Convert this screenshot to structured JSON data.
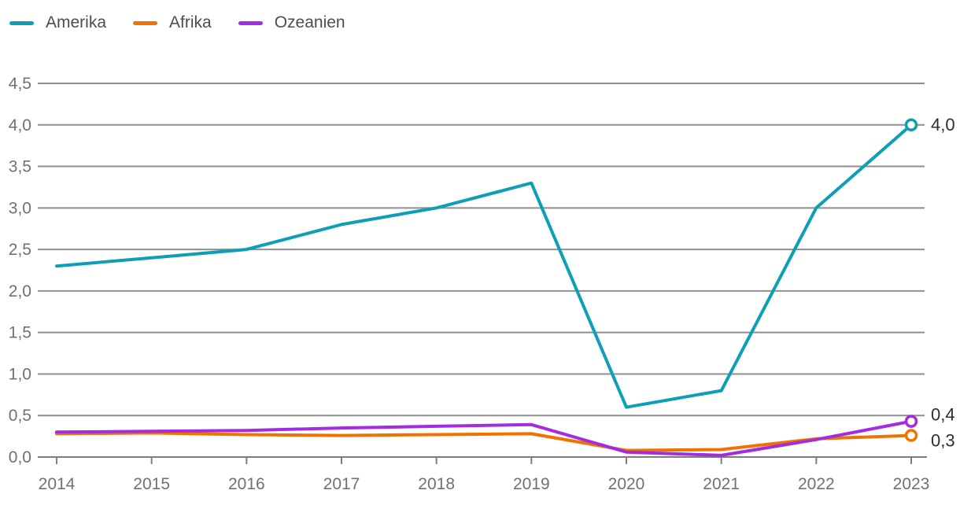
{
  "chart_data": {
    "type": "line",
    "title": "",
    "xlabel": "",
    "ylabel": "",
    "categories": [
      "2014",
      "2015",
      "2016",
      "2017",
      "2018",
      "2019",
      "2020",
      "2021",
      "2022",
      "2023"
    ],
    "series": [
      {
        "name": "Amerika",
        "color": "#0d9fb5",
        "values": [
          2.3,
          2.4,
          2.5,
          2.8,
          3.0,
          3.3,
          0.6,
          0.8,
          3.0,
          4.0
        ],
        "end_label": "4,0"
      },
      {
        "name": "Afrika",
        "color": "#f07300",
        "values": [
          0.28,
          0.29,
          0.27,
          0.26,
          0.27,
          0.28,
          0.08,
          0.09,
          0.22,
          0.26
        ],
        "end_label": "0,3"
      },
      {
        "name": "Ozeanien",
        "color": "#a42ce0",
        "values": [
          0.3,
          0.31,
          0.32,
          0.35,
          0.37,
          0.39,
          0.06,
          0.02,
          0.21,
          0.43
        ],
        "end_label": "0,4"
      }
    ],
    "y_tick_labels": [
      "0,0",
      "0,5",
      "1,0",
      "1,5",
      "2,0",
      "2,5",
      "3,0",
      "3,5",
      "4,0",
      "4,5"
    ],
    "y_tick_values": [
      0,
      0.5,
      1.0,
      1.5,
      2.0,
      2.5,
      3.0,
      3.5,
      4.0,
      4.5
    ],
    "ylim": [
      0,
      4.5
    ],
    "grid": true,
    "number_format": "decimal-comma",
    "legend_position": "top-left",
    "colors": {
      "gridline": "#8f8f8f",
      "baseline": "#7d7d7d",
      "axis_tick_label": "#717171",
      "end_value_label": "#2d2d2d",
      "legend_text": "#4d4d4d",
      "marker_fill": "#ffffff"
    }
  }
}
